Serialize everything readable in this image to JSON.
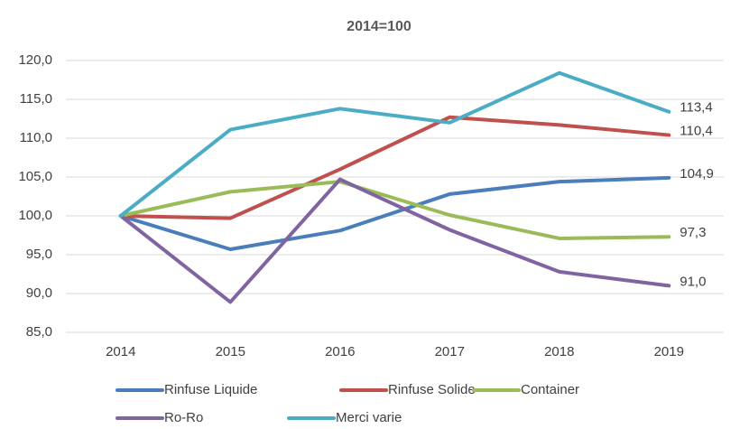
{
  "chart_data": {
    "type": "line",
    "title": "2014=100",
    "categories": [
      "2014",
      "2015",
      "2016",
      "2017",
      "2018",
      "2019"
    ],
    "series": [
      {
        "name": "Rinfuse Liquide",
        "color": "#4a7ebb",
        "values": [
          100,
          95.7,
          98.1,
          102.8,
          104.4,
          104.9
        ],
        "value_labels": [
          null,
          null,
          null,
          null,
          null,
          "104,9"
        ]
      },
      {
        "name": "Rinfuse Solide",
        "color": "#c0504d",
        "values": [
          100,
          99.7,
          106.0,
          112.7,
          111.7,
          110.4
        ],
        "value_labels": [
          null,
          null,
          null,
          null,
          null,
          "110,4"
        ]
      },
      {
        "name": "Container",
        "color": "#9bbb59",
        "values": [
          100,
          103.1,
          104.4,
          100.1,
          97.1,
          97.3
        ],
        "value_labels": [
          null,
          null,
          null,
          null,
          null,
          "97,3"
        ]
      },
      {
        "name": "Ro-Ro",
        "color": "#8064a2",
        "values": [
          100,
          88.9,
          104.7,
          98.2,
          92.8,
          91.0
        ],
        "value_labels": [
          null,
          null,
          null,
          null,
          null,
          "91,0"
        ]
      },
      {
        "name": "Merci varie",
        "color": "#4bacc6",
        "values": [
          100,
          111.1,
          113.8,
          112.0,
          118.4,
          113.4
        ],
        "value_labels": [
          null,
          null,
          null,
          null,
          null,
          "113,4"
        ]
      }
    ],
    "ylim": [
      85,
      120
    ],
    "yticks": [
      {
        "value": 85,
        "label": "85,0"
      },
      {
        "value": 90,
        "label": "90,0"
      },
      {
        "value": 95,
        "label": "95,0"
      },
      {
        "value": 100,
        "label": "100,0"
      },
      {
        "value": 105,
        "label": "105,0"
      },
      {
        "value": 110,
        "label": "110,0"
      },
      {
        "value": 115,
        "label": "115,0"
      },
      {
        "value": 120,
        "label": "120,0"
      }
    ],
    "grid": true,
    "legend": "bottom"
  }
}
